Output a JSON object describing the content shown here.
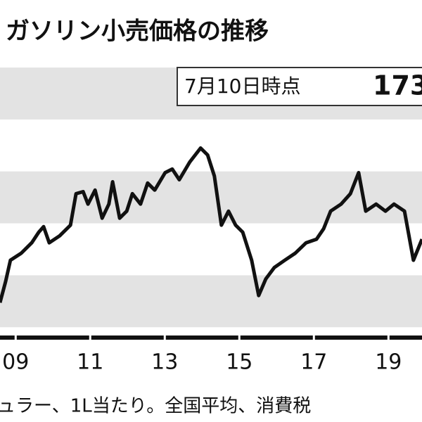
{
  "chart_data": {
    "type": "line",
    "title": "ガソリン小売価格の推移",
    "annotation": {
      "date": "7月10日時点",
      "value": "173"
    },
    "note": "ュラー、1L当たり。全国平均、消費税",
    "x": [
      2008.58,
      2008.73,
      2008.86,
      2009.15,
      2009.43,
      2009.62,
      2009.75,
      2009.9,
      2010.18,
      2010.47,
      2010.62,
      2010.81,
      2010.94,
      2011.13,
      2011.32,
      2011.5,
      2011.6,
      2011.79,
      2011.98,
      2012.13,
      2012.35,
      2012.54,
      2012.73,
      2013.01,
      2013.2,
      2013.39,
      2013.67,
      2013.96,
      2014.15,
      2014.33,
      2014.52,
      2014.71,
      2014.9,
      2015.09,
      2015.33,
      2015.52,
      2015.71,
      2015.94,
      2016.22,
      2016.5,
      2016.79,
      2017.07,
      2017.26,
      2017.45,
      2017.73,
      2017.98,
      2018.2,
      2018.39,
      2018.67,
      2018.92,
      2019.15,
      2019.43,
      2019.67,
      2019.9
    ],
    "series": [
      {
        "color": "#111111",
        "values": [
          109.5,
          117.6,
          125.8,
          128.5,
          132.5,
          136.6,
          138.7,
          132.5,
          135.2,
          139.3,
          151.4,
          152.2,
          147.4,
          152.8,
          142,
          147.4,
          156,
          142,
          144.7,
          151.4,
          147.4,
          155.5,
          152.8,
          159.5,
          160.9,
          156.8,
          163.6,
          169,
          166.3,
          158.2,
          139.3,
          144.7,
          139.3,
          136.6,
          125.8,
          112.2,
          118.6,
          123,
          125.8,
          128.5,
          132.5,
          133.9,
          137.9,
          144.7,
          147.4,
          151.4,
          159.5,
          144.7,
          147.4,
          144.7,
          147.4,
          144.7,
          125.8,
          133.9
        ]
      }
    ],
    "xlim": [
      2008.58,
      2019.9
    ],
    "xticks": [
      {
        "value": 2009,
        "label": "09"
      },
      {
        "value": 2011,
        "label": "11"
      },
      {
        "value": 2013,
        "label": "13"
      },
      {
        "value": 2015,
        "label": "15"
      },
      {
        "value": 2017,
        "label": "17"
      },
      {
        "value": 2019,
        "label": "19"
      }
    ],
    "ylim": [
      96,
      200
    ],
    "bands": [
      [
        100,
        120
      ],
      [
        140,
        160
      ],
      [
        180,
        200
      ]
    ],
    "band_color": "#e3e3e3"
  }
}
